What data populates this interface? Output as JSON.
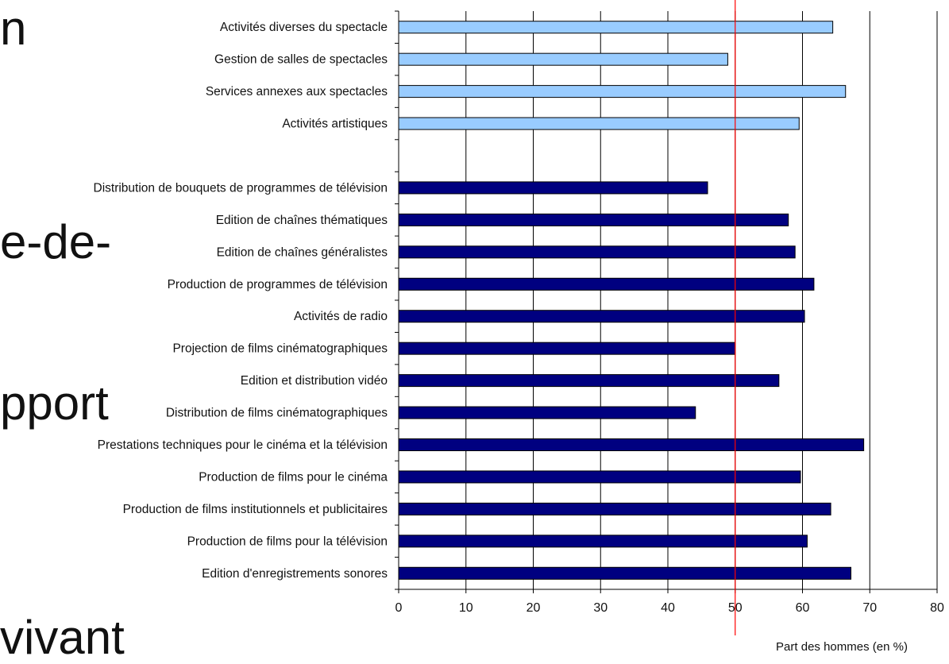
{
  "background_fragments": [
    "n",
    "e-de-",
    "pport",
    "vivant"
  ],
  "chart_data": {
    "type": "bar",
    "orientation": "horizontal",
    "categories": [
      "Activités diverses du spectacle",
      "Gestion de salles de spectacles",
      "Services annexes aux spectacles",
      "Activités artistiques",
      "",
      "Distribution de bouquets de programmes de télévision",
      "Edition de chaînes thématiques",
      "Edition de chaînes généralistes",
      "Production de programmes de télévision",
      "Activités de radio",
      "Projection de films cinématographiques",
      "Edition et distribution vidéo",
      "Distribution de films cinématographiques",
      "Prestations techniques pour le cinéma et la télévision",
      "Production de films pour le cinéma",
      "Production de films institutionnels et publicitaires",
      "Production de films pour la télévision",
      "Edition d'enregistrements sonores"
    ],
    "values": [
      64.5,
      48.9,
      66.4,
      59.5,
      null,
      45.9,
      57.9,
      58.9,
      61.7,
      60.3,
      50.0,
      56.5,
      44.1,
      69.1,
      59.7,
      64.2,
      60.7,
      67.2
    ],
    "bar_colors": [
      "#99ccff",
      "#99ccff",
      "#99ccff",
      "#99ccff",
      null,
      "#000080",
      "#000080",
      "#000080",
      "#000080",
      "#000080",
      "#000080",
      "#000080",
      "#000080",
      "#000080",
      "#000080",
      "#000080",
      "#000080",
      "#000080"
    ],
    "xlabel": "Part des hommes (en %)",
    "xlim": [
      0,
      80
    ],
    "xticks": [
      0,
      10,
      20,
      30,
      40,
      50,
      60,
      70,
      80
    ],
    "reference_line": {
      "value": 50,
      "color": "#ff0000"
    },
    "grid": "vertical",
    "legend": "none"
  }
}
